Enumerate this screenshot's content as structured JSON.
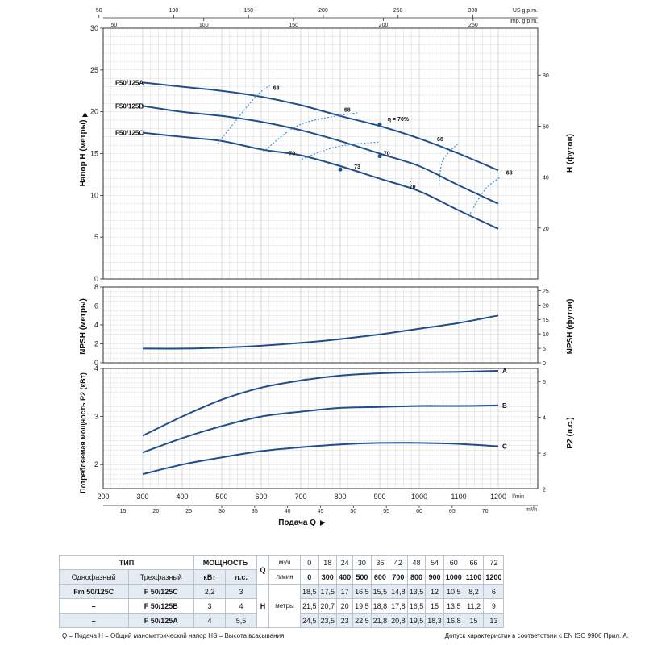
{
  "colors": {
    "curve": "#1f4e8c",
    "efficiency": "#4a90d9",
    "grid": "#cfcfcf",
    "table_shade": "#e4ebf2"
  },
  "chart_data": [
    {
      "type": "line",
      "title": "",
      "xlabel": "Подача Q",
      "ylabel": "Напор H (метры)",
      "ylabel_right": "H (футов)",
      "xlim": [
        200,
        1300
      ],
      "ylim": [
        0,
        30
      ],
      "x_ticks": [
        300,
        400,
        500,
        600,
        700,
        800,
        900,
        1000,
        1100,
        1200
      ],
      "y_ticks": [
        0,
        5,
        10,
        15,
        20,
        25,
        30
      ],
      "y_right_ticks": [
        20,
        40,
        60,
        80
      ],
      "top_axis_us": {
        "unit": "US g.p.m.",
        "ticks": [
          50,
          100,
          150,
          200,
          250,
          300
        ]
      },
      "top_axis_imp": {
        "unit": "Imp. g.p.m.",
        "ticks": [
          50,
          100,
          150,
          200,
          250
        ]
      },
      "x": [
        300,
        400,
        500,
        600,
        700,
        800,
        900,
        1000,
        1100,
        1200
      ],
      "series": [
        {
          "name": "F50/125A",
          "values": [
            23.5,
            23,
            22.5,
            21.8,
            20.8,
            19.5,
            18.3,
            16.8,
            15,
            13
          ]
        },
        {
          "name": "F50/125B",
          "values": [
            20.7,
            20,
            19.5,
            18.8,
            17.8,
            16.5,
            15,
            13.5,
            11.2,
            9
          ]
        },
        {
          "name": "F50/125C",
          "values": [
            17.5,
            17,
            16.5,
            15.5,
            14.8,
            13.5,
            12,
            10.5,
            8.2,
            6
          ]
        }
      ],
      "efficiency_lines": [
        {
          "label": "63",
          "points": [
            [
              490,
              16.2
            ],
            [
              580,
              21.5
            ],
            [
              625,
              23.3
            ]
          ]
        },
        {
          "label": "68",
          "points": [
            [
              605,
              15.2
            ],
            [
              700,
              18.5
            ],
            [
              845,
              19.9
            ]
          ]
        },
        {
          "label": "70",
          "points": [
            [
              695,
              14.2
            ],
            [
              790,
              15.8
            ],
            [
              900,
              16.4
            ]
          ]
        },
        {
          "label": "70",
          "points": [
            [
              975,
              10.8
            ],
            [
              980,
              12.0
            ]
          ]
        },
        {
          "label": "68",
          "points": [
            [
              1050,
              11.3
            ],
            [
              1060,
              14.2
            ],
            [
              1100,
              16.3
            ]
          ]
        },
        {
          "label": "63",
          "points": [
            [
              1125,
              7.5
            ],
            [
              1165,
              10.6
            ],
            [
              1205,
              12.2
            ]
          ]
        }
      ],
      "annotations": [
        {
          "text": "63",
          "x": 630,
          "y": 22.6
        },
        {
          "text": "68",
          "x": 810,
          "y": 20
        },
        {
          "text": "η = 70%",
          "x": 920,
          "y": 18.9
        },
        {
          "text": "68",
          "x": 1045,
          "y": 16.5
        },
        {
          "text": "63",
          "x": 1220,
          "y": 12.5
        },
        {
          "text": "70",
          "x": 670,
          "y": 14.8
        },
        {
          "text": "73",
          "x": 835,
          "y": 13.2
        },
        {
          "text": "70",
          "x": 910,
          "y": 14.8
        },
        {
          "text": "70",
          "x": 975,
          "y": 10.8
        }
      ],
      "operating_points": [
        {
          "x": 900,
          "y": 18.5
        },
        {
          "x": 900,
          "y": 14.7
        },
        {
          "x": 800,
          "y": 13.1
        }
      ]
    },
    {
      "type": "line",
      "ylabel": "NPSH (метры)",
      "ylabel_right": "NPSH (футов)",
      "xlim": [
        200,
        1300
      ],
      "ylim": [
        0,
        8
      ],
      "y_ticks": [
        0,
        2,
        4,
        6,
        8
      ],
      "y_right_ticks": [
        0,
        5,
        10,
        15,
        20,
        25
      ],
      "x": [
        300,
        400,
        500,
        600,
        700,
        800,
        900,
        1000,
        1100,
        1200
      ],
      "series": [
        {
          "name": "NPSH",
          "values": [
            1.5,
            1.5,
            1.6,
            1.8,
            2.1,
            2.5,
            3.0,
            3.6,
            4.2,
            5.0
          ]
        }
      ]
    },
    {
      "type": "line",
      "ylabel": "Потребляемая мощность P2 (кВт)",
      "ylabel_right": "P2 (л.с.)",
      "xlim": [
        200,
        1300
      ],
      "ylim": [
        1.5,
        4
      ],
      "y_ticks": [
        2,
        3,
        4
      ],
      "y_right_ticks": [
        2,
        3,
        4,
        5
      ],
      "x_ticks_lmin": [
        200,
        300,
        400,
        500,
        600,
        700,
        800,
        900,
        1000,
        1100,
        1200
      ],
      "x_unit_lmin": "l/min",
      "x_ticks_m3h": [
        15,
        20,
        25,
        30,
        35,
        40,
        45,
        50,
        55,
        60,
        65,
        70
      ],
      "x_unit_m3h": "m³/h",
      "x": [
        300,
        400,
        500,
        600,
        700,
        800,
        900,
        1000,
        1100,
        1200
      ],
      "series": [
        {
          "name": "A",
          "values": [
            2.6,
            3.0,
            3.35,
            3.6,
            3.75,
            3.85,
            3.9,
            3.92,
            3.93,
            3.95
          ]
        },
        {
          "name": "B",
          "values": [
            2.25,
            2.55,
            2.8,
            3.0,
            3.1,
            3.18,
            3.2,
            3.22,
            3.22,
            3.23
          ]
        },
        {
          "name": "C",
          "values": [
            1.8,
            2.0,
            2.15,
            2.28,
            2.36,
            2.42,
            2.45,
            2.45,
            2.43,
            2.38
          ]
        }
      ]
    }
  ],
  "table": {
    "header": {
      "type": "ТИП",
      "power": "МОЩНОСТЬ",
      "q_label": "Q",
      "q_unit1": "м³/ч",
      "q_unit2": "л/мин",
      "single_phase": "Однофазный",
      "three_phase": "Трехфазный",
      "kw": "кВт",
      "hp": "л.с.",
      "h_label": "H",
      "h_unit": "метры"
    },
    "q_m3h": [
      "0",
      "18",
      "24",
      "30",
      "36",
      "42",
      "48",
      "54",
      "60",
      "66",
      "72"
    ],
    "q_lmin": [
      "0",
      "300",
      "400",
      "500",
      "600",
      "700",
      "800",
      "900",
      "1000",
      "1100",
      "1200"
    ],
    "rows": [
      {
        "single": "Fm 50/125C",
        "three": "F 50/125C",
        "kw": "2,2",
        "hp": "3",
        "h": [
          "18,5",
          "17,5",
          "17",
          "16,5",
          "15,5",
          "14,8",
          "13,5",
          "12",
          "10,5",
          "8,2",
          "6"
        ]
      },
      {
        "single": "–",
        "three": "F 50/125B",
        "kw": "3",
        "hp": "4",
        "h": [
          "21,5",
          "20,7",
          "20",
          "19,5",
          "18,8",
          "17,8",
          "16,5",
          "15",
          "13,5",
          "11,2",
          "9"
        ]
      },
      {
        "single": "–",
        "three": "F 50/125A",
        "kw": "4",
        "hp": "5,5",
        "h": [
          "24,5",
          "23,5",
          "23",
          "22,5",
          "21,8",
          "20,8",
          "19,5",
          "18,3",
          "16,8",
          "15",
          "13"
        ]
      }
    ]
  },
  "footer": {
    "legend": "Q = Подача  H = Общий манометрический напор  HS = Высота всасывания",
    "note": "Допуск характеристик в соответствии с EN ISO 9906 Прил. А."
  }
}
